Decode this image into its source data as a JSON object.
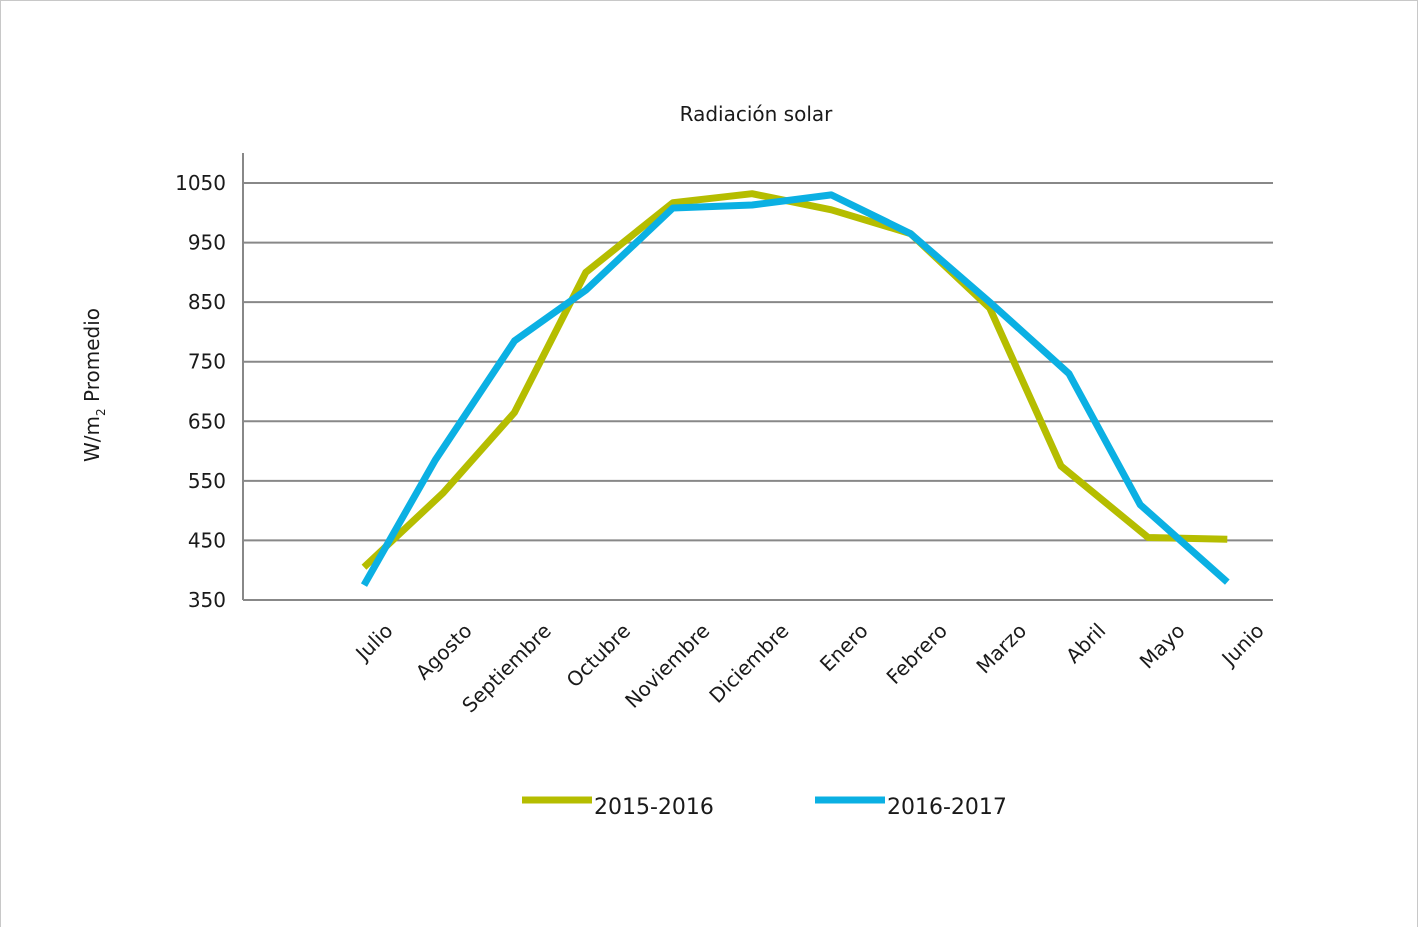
{
  "chart_data": {
    "type": "line",
    "title": "Radiación solar",
    "ylabel_main": "W/m",
    "ylabel_sub": "2",
    "ylabel_tail": " Promedio",
    "xlabel": "",
    "categories": [
      "Julio",
      "Agosto",
      "Septiembre",
      "Octubre",
      "Noviembre",
      "Diciembre",
      "Enero",
      "Febrero",
      "Marzo",
      "Abril",
      "Mayo",
      "Junio"
    ],
    "yticks": [
      350,
      450,
      550,
      650,
      750,
      850,
      950,
      1050
    ],
    "ylim": [
      350,
      1050
    ],
    "grid": true,
    "legend_position": "bottom",
    "series": [
      {
        "name": "2015-2016",
        "color": "#b5bd00",
        "points": [
          [
            0.0,
            405
          ],
          [
            1.0,
            530
          ],
          [
            1.9,
            665
          ],
          [
            2.8,
            900
          ],
          [
            3.9,
            1017
          ],
          [
            4.9,
            1032
          ],
          [
            5.9,
            1005
          ],
          [
            6.9,
            965
          ],
          [
            7.9,
            840
          ],
          [
            8.8,
            575
          ],
          [
            9.9,
            455
          ],
          [
            10.9,
            452
          ]
        ]
      },
      {
        "name": "2016-2017",
        "color": "#0bb0e3",
        "points": [
          [
            0.0,
            375
          ],
          [
            0.9,
            585
          ],
          [
            1.9,
            785
          ],
          [
            2.8,
            870
          ],
          [
            3.9,
            1008
          ],
          [
            4.9,
            1013
          ],
          [
            5.9,
            1030
          ],
          [
            6.9,
            965
          ],
          [
            7.9,
            850
          ],
          [
            8.9,
            730
          ],
          [
            9.8,
            510
          ],
          [
            10.9,
            380
          ]
        ]
      }
    ]
  }
}
